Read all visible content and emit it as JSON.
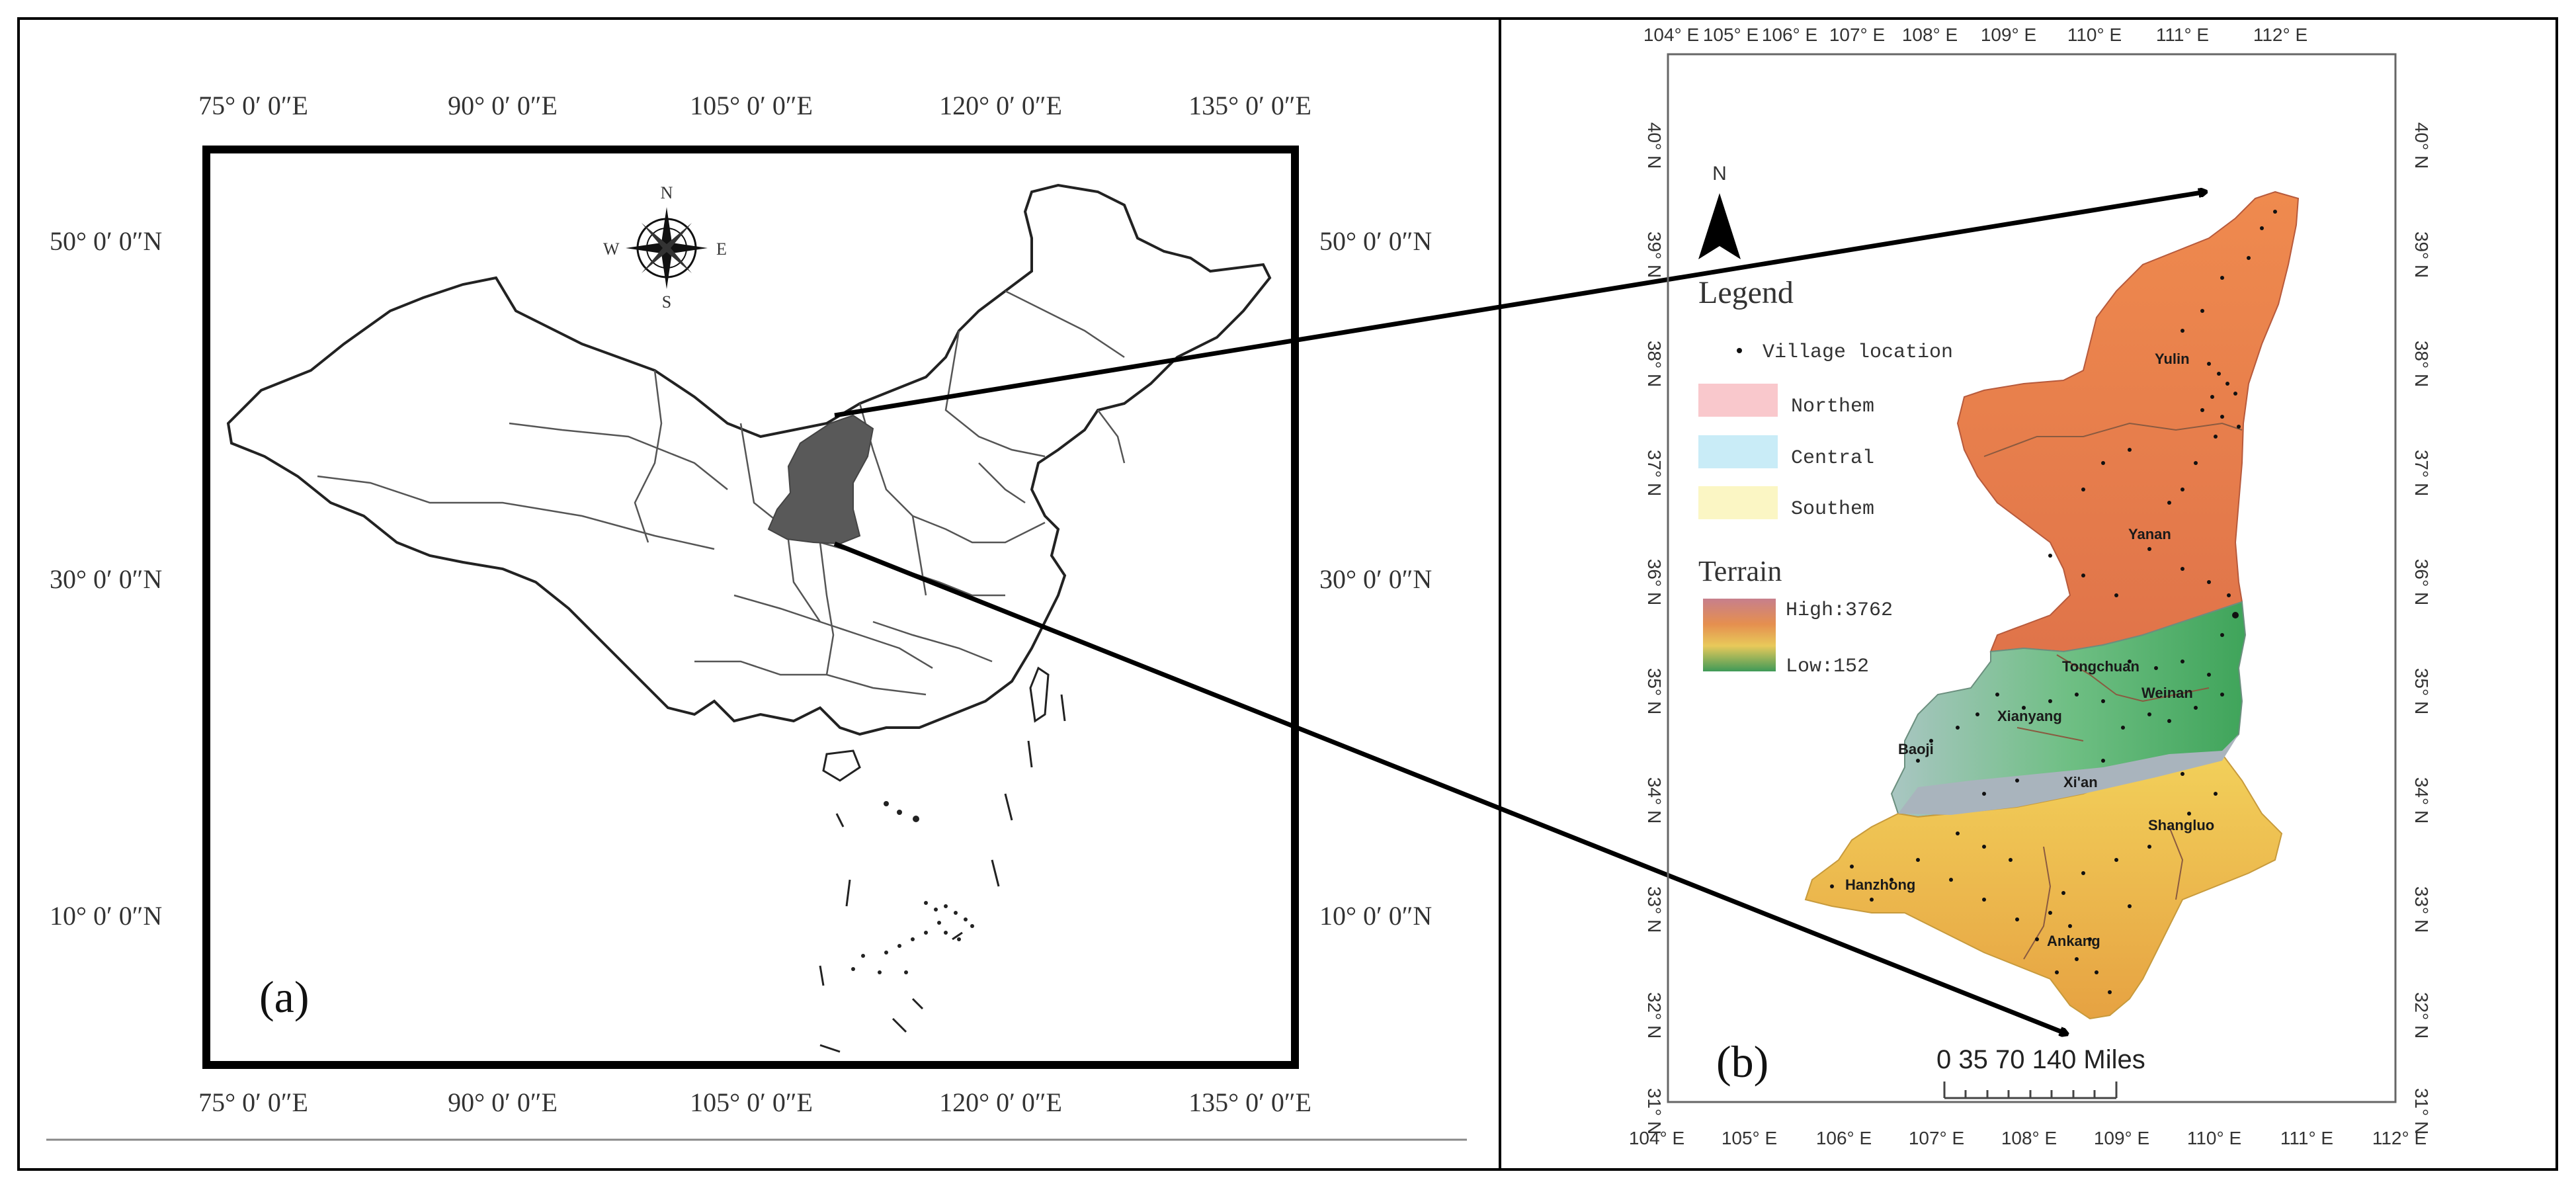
{
  "panel_a": {
    "label": "(a)",
    "top_lon_labels": [
      "75° 0′ 0″E",
      "90° 0′ 0″E",
      "105° 0′ 0″E",
      "120° 0′ 0″E",
      "135° 0′ 0″E"
    ],
    "bottom_lon_labels": [
      "75° 0′ 0″E",
      "90° 0′ 0″E",
      "105° 0′ 0″E",
      "120° 0′ 0″E",
      "135° 0′ 0″E"
    ],
    "left_lat_labels": [
      "50° 0′ 0″N",
      "30° 0′ 0″N",
      "10° 0′ 0″N"
    ],
    "right_lat_labels": [
      "50° 0′ 0″N",
      "30° 0′ 0″N",
      "10° 0′ 0″N"
    ],
    "compass": {
      "n": "N",
      "s": "S",
      "e": "E",
      "w": "W"
    },
    "highlight_color": "#595959"
  },
  "panel_b": {
    "label": "(b)",
    "top_lon_labels": [
      "104° E",
      "105° E",
      "106° E",
      "107° E",
      "108° E",
      "109° E",
      "110° E",
      "111° E",
      "112° E"
    ],
    "bottom_lon_labels": [
      "104° E",
      "105° E",
      "106° E",
      "107° E",
      "108° E",
      "109° E",
      "110° E",
      "111° E",
      "112° E"
    ],
    "lat_labels": [
      "40° N",
      "39° N",
      "38° N",
      "37° N",
      "36° N",
      "35° N",
      "34° N",
      "33° N",
      "32° N",
      "31° N"
    ],
    "north_arrow": "N",
    "legend": {
      "title": "Legend",
      "village": "Village location",
      "northern": "Northem",
      "central": "Central",
      "southern": "Southem",
      "northern_color": "#f9c8cc",
      "central_color": "#c9ecf7",
      "southern_color": "#fbf6c4"
    },
    "terrain": {
      "title": "Terrain",
      "high": "High:3762",
      "low": "Low:152"
    },
    "cities": [
      "Yulin",
      "Yanan",
      "Tongchuan",
      "Weinan",
      "Xianyang",
      "Baoji",
      "Xi'an",
      "Shangluo",
      "Hanzhong",
      "Ankang"
    ],
    "scale": {
      "text": "0   35  70        140 Miles"
    }
  }
}
